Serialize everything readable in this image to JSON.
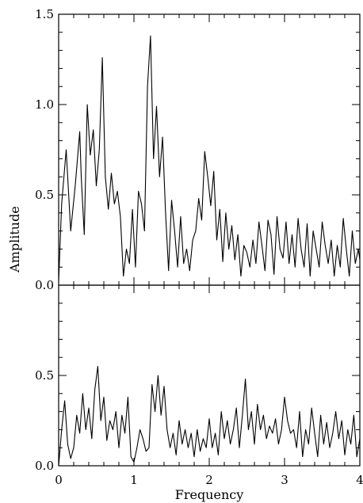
{
  "chart_data": [
    {
      "type": "line",
      "panel": "top",
      "xlabel": "Frequency",
      "ylabel": "Amplitude",
      "xlim": [
        0,
        4
      ],
      "ylim": [
        0,
        1.5
      ],
      "x_ticks": [
        0,
        1,
        2,
        3,
        4
      ],
      "y_ticks": [
        0.0,
        0.5,
        1.0,
        1.5
      ],
      "y_tick_labels": [
        "0.0",
        "0.5",
        "1.0",
        "1.5"
      ],
      "grid": false,
      "series": [
        {
          "x": [
            0,
            0.04,
            0.1,
            0.16,
            0.22,
            0.28,
            0.3,
            0.34,
            0.38,
            0.42,
            0.46,
            0.5,
            0.54,
            0.58,
            0.62,
            0.66,
            0.7,
            0.74,
            0.78,
            0.82,
            0.86,
            0.9,
            0.94,
            0.98,
            1.02,
            1.06,
            1.1,
            1.14,
            1.18,
            1.22,
            1.26,
            1.3,
            1.34,
            1.38,
            1.42,
            1.46,
            1.5,
            1.54,
            1.58,
            1.62,
            1.66,
            1.7,
            1.74,
            1.78,
            1.82,
            1.86,
            1.9,
            1.94,
            1.98,
            2.02,
            2.06,
            2.1,
            2.14,
            2.18,
            2.22,
            2.26,
            2.3,
            2.34,
            2.38,
            2.42,
            2.46,
            2.5,
            2.54,
            2.58,
            2.62,
            2.66,
            2.7,
            2.74,
            2.78,
            2.82,
            2.86,
            2.9,
            2.94,
            2.98,
            3.02,
            3.06,
            3.1,
            3.14,
            3.18,
            3.22,
            3.26,
            3.3,
            3.34,
            3.38,
            3.42,
            3.46,
            3.5,
            3.54,
            3.58,
            3.62,
            3.66,
            3.7,
            3.74,
            3.78,
            3.82,
            3.86,
            3.9,
            3.94,
            3.98,
            4.0
          ],
          "y": [
            0.02,
            0.45,
            0.75,
            0.3,
            0.55,
            0.85,
            0.6,
            0.28,
            1.0,
            0.72,
            0.86,
            0.55,
            0.75,
            1.26,
            0.6,
            0.42,
            0.62,
            0.45,
            0.52,
            0.38,
            0.05,
            0.2,
            0.12,
            0.42,
            0.1,
            0.52,
            0.45,
            0.3,
            1.1,
            1.38,
            0.7,
            0.99,
            0.6,
            0.82,
            0.4,
            0.08,
            0.47,
            0.3,
            0.1,
            0.38,
            0.12,
            0.2,
            0.08,
            0.25,
            0.3,
            0.48,
            0.36,
            0.74,
            0.6,
            0.44,
            0.63,
            0.25,
            0.42,
            0.13,
            0.4,
            0.2,
            0.33,
            0.14,
            0.28,
            0.05,
            0.22,
            0.18,
            0.1,
            0.25,
            0.12,
            0.35,
            0.22,
            0.08,
            0.36,
            0.28,
            0.06,
            0.38,
            0.2,
            0.15,
            0.35,
            0.12,
            0.28,
            0.1,
            0.37,
            0.2,
            0.1,
            0.34,
            0.05,
            0.3,
            0.2,
            0.1,
            0.35,
            0.22,
            0.12,
            0.25,
            0.05,
            0.22,
            0.1,
            0.37,
            0.2,
            0.05,
            0.3,
            0.12,
            0.2,
            0.14
          ]
        }
      ]
    },
    {
      "type": "line",
      "panel": "bottom",
      "xlabel": "Frequency",
      "ylabel": "",
      "xlim": [
        0,
        4
      ],
      "ylim": [
        0,
        1.0
      ],
      "x_ticks": [
        0,
        1,
        2,
        3,
        4
      ],
      "x_tick_labels": [
        "0",
        "1",
        "2",
        "3",
        "4"
      ],
      "y_ticks": [
        0.0,
        0.5
      ],
      "y_tick_labels": [
        "0.0",
        "0.5"
      ],
      "grid": false,
      "series": [
        {
          "x": [
            0,
            0.04,
            0.08,
            0.12,
            0.16,
            0.2,
            0.24,
            0.28,
            0.32,
            0.36,
            0.4,
            0.44,
            0.48,
            0.52,
            0.56,
            0.6,
            0.64,
            0.68,
            0.72,
            0.76,
            0.8,
            0.84,
            0.88,
            0.92,
            0.96,
            1.0,
            1.04,
            1.08,
            1.12,
            1.16,
            1.2,
            1.24,
            1.28,
            1.32,
            1.36,
            1.4,
            1.44,
            1.48,
            1.52,
            1.56,
            1.6,
            1.64,
            1.68,
            1.72,
            1.76,
            1.8,
            1.84,
            1.88,
            1.92,
            1.96,
            2.0,
            2.04,
            2.08,
            2.12,
            2.16,
            2.2,
            2.24,
            2.28,
            2.32,
            2.36,
            2.4,
            2.44,
            2.48,
            2.52,
            2.56,
            2.6,
            2.64,
            2.68,
            2.72,
            2.76,
            2.8,
            2.84,
            2.88,
            2.92,
            2.96,
            3.0,
            3.04,
            3.08,
            3.12,
            3.16,
            3.2,
            3.24,
            3.28,
            3.32,
            3.36,
            3.4,
            3.44,
            3.48,
            3.52,
            3.56,
            3.6,
            3.64,
            3.68,
            3.72,
            3.76,
            3.8,
            3.84,
            3.88,
            3.92,
            3.96,
            4.0
          ],
          "y": [
            0.0,
            0.2,
            0.36,
            0.12,
            0.04,
            0.1,
            0.28,
            0.18,
            0.4,
            0.2,
            0.32,
            0.15,
            0.42,
            0.55,
            0.25,
            0.38,
            0.14,
            0.25,
            0.2,
            0.3,
            0.1,
            0.28,
            0.18,
            0.38,
            0.05,
            0.02,
            0.1,
            0.2,
            0.15,
            0.08,
            0.1,
            0.45,
            0.3,
            0.5,
            0.28,
            0.44,
            0.2,
            0.1,
            0.18,
            0.06,
            0.25,
            0.12,
            0.2,
            0.1,
            0.18,
            0.05,
            0.2,
            0.08,
            0.15,
            0.1,
            0.26,
            0.1,
            0.18,
            0.06,
            0.3,
            0.15,
            0.25,
            0.12,
            0.2,
            0.32,
            0.1,
            0.28,
            0.48,
            0.2,
            0.3,
            0.12,
            0.34,
            0.2,
            0.28,
            0.15,
            0.22,
            0.18,
            0.26,
            0.12,
            0.2,
            0.38,
            0.25,
            0.18,
            0.2,
            0.1,
            0.3,
            0.05,
            0.2,
            0.12,
            0.32,
            0.18,
            0.05,
            0.28,
            0.12,
            0.24,
            0.1,
            0.18,
            0.3,
            0.15,
            0.25,
            0.06,
            0.2,
            0.12,
            0.28,
            0.05,
            0.15
          ]
        }
      ]
    }
  ]
}
